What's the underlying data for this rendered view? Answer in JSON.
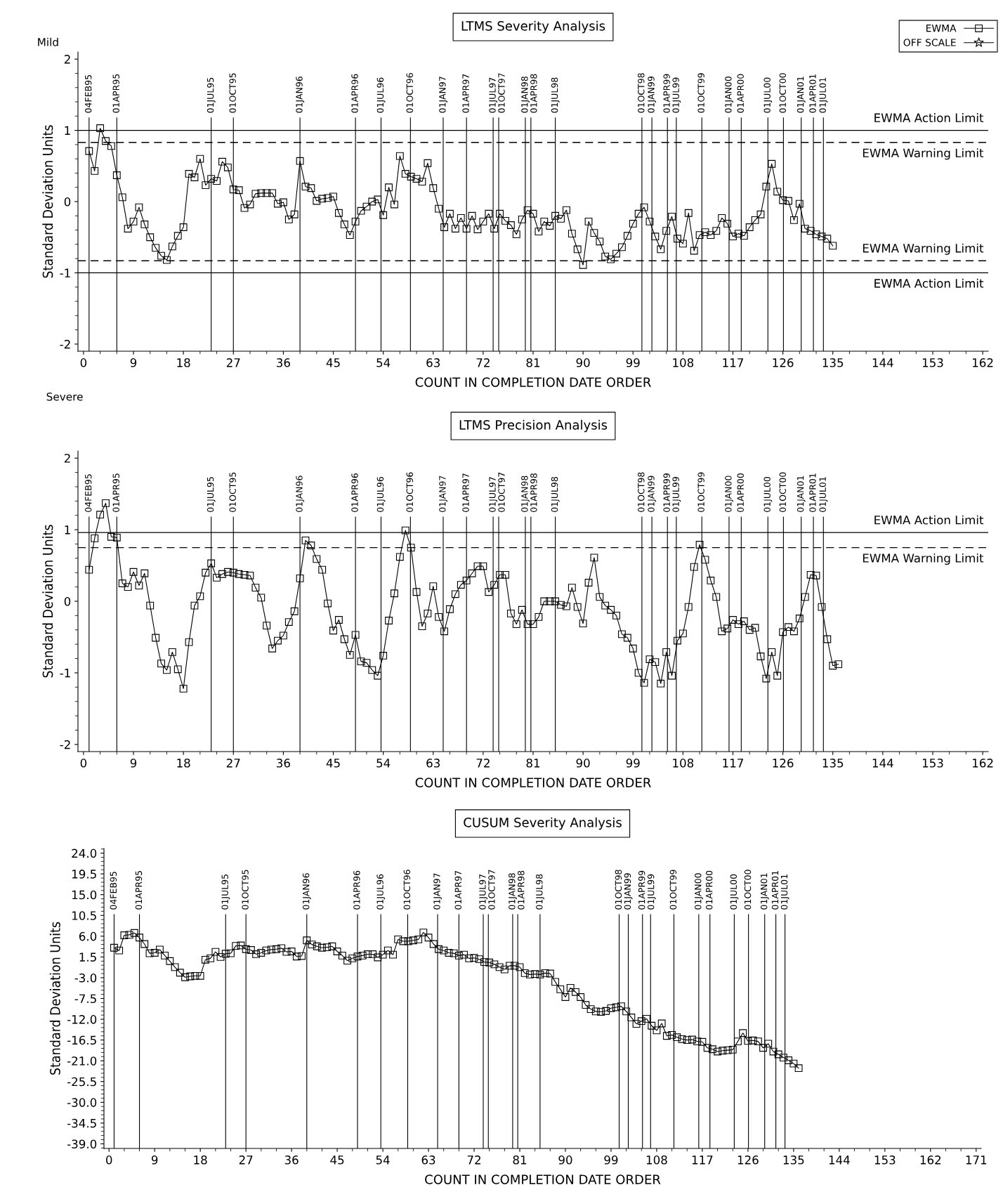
{
  "chart_data": [
    {
      "type": "line",
      "title": "LTMS Severity Analysis",
      "xlabel": "COUNT IN COMPLETION DATE ORDER",
      "ylabel": "Standard Deviation Units",
      "annotations": [
        "Mild",
        "Severe"
      ],
      "marker": "square",
      "legend": "top right",
      "xlim": [
        -1,
        163
      ],
      "xticks": [
        0,
        9,
        18,
        27,
        36,
        45,
        54,
        63,
        72,
        81,
        90,
        99,
        108,
        117,
        126,
        135,
        144,
        153,
        162
      ],
      "ylim": [
        -2.1,
        2.1
      ],
      "yticks": [
        -2,
        -1,
        0,
        1,
        2
      ],
      "series": [
        {
          "name": "EWMA",
          "color": "#000000",
          "x": [
            1,
            2,
            3,
            4,
            5,
            6,
            7,
            8,
            9,
            10,
            11,
            12,
            13,
            14,
            15,
            16,
            17,
            18,
            19,
            20,
            21,
            22,
            23,
            24,
            25,
            26,
            27,
            28,
            29,
            30,
            31,
            32,
            33,
            34,
            35,
            36,
            37,
            38,
            39,
            40,
            41,
            42,
            43,
            44,
            45,
            46,
            47,
            48,
            49,
            50,
            51,
            52,
            53,
            54,
            55,
            56,
            57,
            58,
            59,
            60,
            61,
            62,
            63,
            64,
            65,
            66,
            67,
            68,
            69,
            70,
            71,
            72,
            73,
            74,
            75,
            76,
            77,
            78,
            79,
            80,
            81,
            82,
            83,
            84,
            85,
            86,
            87,
            88,
            89,
            90,
            91,
            92,
            93,
            94,
            95,
            96,
            97,
            98,
            99,
            100,
            101,
            102,
            103,
            104,
            105,
            106,
            107,
            108,
            109,
            110,
            111,
            112,
            113,
            114,
            115,
            116,
            117,
            118,
            119,
            120,
            121,
            122,
            123,
            124,
            125,
            126,
            127,
            128,
            129,
            130,
            131,
            132,
            133,
            134,
            135
          ],
          "values": [
            0.71,
            0.43,
            1.03,
            0.85,
            0.78,
            0.37,
            0.06,
            -0.38,
            -0.28,
            -0.08,
            -0.32,
            -0.5,
            -0.65,
            -0.76,
            -0.82,
            -0.63,
            -0.48,
            -0.36,
            0.39,
            0.34,
            0.6,
            0.23,
            0.32,
            0.29,
            0.56,
            0.48,
            0.17,
            0.16,
            -0.09,
            -0.04,
            0.11,
            0.12,
            0.12,
            0.12,
            -0.03,
            -0.01,
            -0.25,
            -0.18,
            0.57,
            0.21,
            0.19,
            0.01,
            0.04,
            0.05,
            0.07,
            -0.16,
            -0.32,
            -0.47,
            -0.28,
            -0.13,
            -0.07,
            0.0,
            0.03,
            -0.19,
            0.2,
            -0.04,
            0.64,
            0.39,
            0.35,
            0.32,
            0.28,
            0.54,
            0.19,
            -0.1,
            -0.36,
            -0.17,
            -0.38,
            -0.23,
            -0.38,
            -0.2,
            -0.39,
            -0.28,
            -0.17,
            -0.38,
            -0.17,
            -0.27,
            -0.33,
            -0.46,
            -0.25,
            -0.12,
            -0.17,
            -0.42,
            -0.28,
            -0.34,
            -0.2,
            -0.24,
            -0.12,
            -0.45,
            -0.67,
            -0.89,
            -0.28,
            -0.44,
            -0.56,
            -0.77,
            -0.81,
            -0.73,
            -0.64,
            -0.48,
            -0.31,
            -0.17,
            -0.08,
            -0.28,
            -0.49,
            -0.67,
            -0.41,
            -0.21,
            -0.52,
            -0.59,
            -0.16,
            -0.69,
            -0.47,
            -0.43,
            -0.47,
            -0.41,
            -0.23,
            -0.31,
            -0.49,
            -0.45,
            -0.48,
            -0.36,
            -0.26,
            -0.18,
            0.21,
            0.53,
            0.14,
            0.02,
            0.01,
            -0.26,
            -0.03,
            -0.38,
            -0.41,
            -0.46,
            -0.49,
            -0.52,
            -0.62
          ]
        },
        {
          "name": "OFF SCALE",
          "color": "#000000",
          "marker": "star"
        }
      ],
      "ref_lines": [
        {
          "axis": "y",
          "value": 1,
          "label": "EWMA Action Limit",
          "color": "#000000",
          "line_style": "solid"
        },
        {
          "axis": "y",
          "value": 0.83,
          "label": "EWMA Warning Limit",
          "color": "#000000",
          "line_style": "dashed"
        },
        {
          "axis": "y",
          "value": -0.83,
          "label": "EWMA Warning Limit",
          "color": "#000000",
          "line_style": "dashed"
        },
        {
          "axis": "y",
          "value": -1,
          "label": "EWMA Action Limit",
          "color": "#000000",
          "line_style": "solid"
        },
        {
          "axis": "x",
          "value": 1,
          "label": "04FEB95"
        },
        {
          "axis": "x",
          "value": 6,
          "label": "01APR95"
        },
        {
          "axis": "x",
          "value": 23,
          "label": "01JUL95"
        },
        {
          "axis": "x",
          "value": 27,
          "label": "01OCT95"
        },
        {
          "axis": "x",
          "value": 39,
          "label": "01JAN96"
        },
        {
          "axis": "x",
          "value": 49,
          "label": "01APR96"
        },
        {
          "axis": "x",
          "value": 53.6,
          "label": "01JUL96"
        },
        {
          "axis": "x",
          "value": 58.9,
          "label": "01OCT96"
        },
        {
          "axis": "x",
          "value": 64.8,
          "label": "01JAN97"
        },
        {
          "axis": "x",
          "value": 69,
          "label": "01APR97"
        },
        {
          "axis": "x",
          "value": 73.8,
          "label": "01JUL97"
        },
        {
          "axis": "x",
          "value": 74.8,
          "label": "01OCT97"
        },
        {
          "axis": "x",
          "value": 79.6,
          "label": "01JAN98"
        },
        {
          "axis": "x",
          "value": 80.6,
          "label": "01APR98"
        },
        {
          "axis": "x",
          "value": 85,
          "label": "01JUL98"
        },
        {
          "axis": "x",
          "value": 100.6,
          "label": "01OCT98"
        },
        {
          "axis": "x",
          "value": 102.4,
          "label": "01JAN99"
        },
        {
          "axis": "x",
          "value": 105.2,
          "label": "01APR99"
        },
        {
          "axis": "x",
          "value": 106.8,
          "label": "01JUL99"
        },
        {
          "axis": "x",
          "value": 111.4,
          "label": "01OCT99"
        },
        {
          "axis": "x",
          "value": 116.3,
          "label": "01JAN00"
        },
        {
          "axis": "x",
          "value": 118.5,
          "label": "01APR00"
        },
        {
          "axis": "x",
          "value": 123.3,
          "label": "01JUL00"
        },
        {
          "axis": "x",
          "value": 126.1,
          "label": "01OCT00"
        },
        {
          "axis": "x",
          "value": 129.3,
          "label": "01JAN01"
        },
        {
          "axis": "x",
          "value": 131.5,
          "label": "01APR01"
        },
        {
          "axis": "x",
          "value": 133.3,
          "label": "01JUL01"
        }
      ]
    },
    {
      "type": "line",
      "title": "LTMS Precision Analysis",
      "xlabel": "COUNT IN COMPLETION DATE ORDER",
      "ylabel": "Standard Deviation Units",
      "marker": "square",
      "xlim": [
        -1,
        163
      ],
      "xticks": [
        0,
        9,
        18,
        27,
        36,
        45,
        54,
        63,
        72,
        81,
        90,
        99,
        108,
        117,
        126,
        135,
        144,
        153,
        162
      ],
      "ylim": [
        -2.1,
        2.1
      ],
      "yticks": [
        -2,
        -1,
        0,
        1,
        2
      ],
      "series": [
        {
          "color": "#000000",
          "x": [
            1,
            2,
            3,
            4,
            5,
            6,
            7,
            8,
            9,
            10,
            11,
            12,
            13,
            14,
            15,
            16,
            17,
            18,
            19,
            20,
            21,
            22,
            23,
            24,
            25,
            26,
            27,
            28,
            29,
            30,
            31,
            32,
            33,
            34,
            35,
            36,
            37,
            38,
            39,
            40,
            41,
            42,
            43,
            44,
            45,
            46,
            47,
            48,
            49,
            50,
            51,
            52,
            53,
            54,
            55,
            56,
            57,
            58,
            59,
            60,
            61,
            62,
            63,
            64,
            65,
            66,
            67,
            68,
            69,
            70,
            71,
            72,
            73,
            74,
            75,
            76,
            77,
            78,
            79,
            80,
            81,
            82,
            83,
            84,
            85,
            86,
            87,
            88,
            89,
            90,
            91,
            92,
            93,
            94,
            95,
            96,
            97,
            98,
            99,
            100,
            101,
            102,
            103,
            104,
            105,
            106,
            107,
            108,
            109,
            110,
            111,
            112,
            113,
            114,
            115,
            116,
            117,
            118,
            119,
            120,
            121,
            122,
            123,
            124,
            125,
            126,
            127,
            128,
            129,
            130,
            131,
            132,
            133,
            134,
            135,
            136
          ],
          "values": [
            0.44,
            0.88,
            1.21,
            1.37,
            0.9,
            0.89,
            0.25,
            0.2,
            0.41,
            0.22,
            0.39,
            -0.06,
            -0.51,
            -0.87,
            -0.96,
            -0.71,
            -0.95,
            -1.22,
            -0.57,
            -0.06,
            0.07,
            0.4,
            0.53,
            0.33,
            0.38,
            0.41,
            0.4,
            0.38,
            0.37,
            0.36,
            0.19,
            0.05,
            -0.34,
            -0.66,
            -0.55,
            -0.48,
            -0.29,
            -0.14,
            0.32,
            0.85,
            0.78,
            0.59,
            0.44,
            -0.03,
            -0.41,
            -0.26,
            -0.53,
            -0.75,
            -0.47,
            -0.84,
            -0.86,
            -0.96,
            -1.04,
            -0.76,
            -0.27,
            0.11,
            0.62,
            0.99,
            0.75,
            0.13,
            -0.35,
            -0.17,
            0.21,
            -0.22,
            -0.42,
            -0.11,
            0.1,
            0.23,
            0.29,
            0.39,
            0.49,
            0.49,
            0.13,
            0.23,
            0.37,
            0.37,
            -0.17,
            -0.32,
            -0.12,
            -0.32,
            -0.32,
            -0.22,
            0.0,
            0.0,
            0.0,
            -0.05,
            -0.07,
            0.19,
            -0.08,
            -0.31,
            0.26,
            0.61,
            0.06,
            -0.06,
            -0.12,
            -0.2,
            -0.46,
            -0.51,
            -0.66,
            -1.0,
            -1.14,
            -0.81,
            -0.85,
            -1.15,
            -0.71,
            -1.04,
            -0.55,
            -0.45,
            -0.08,
            0.48,
            0.79,
            0.58,
            0.29,
            0.06,
            -0.42,
            -0.38,
            -0.26,
            -0.32,
            -0.28,
            -0.4,
            -0.37,
            -0.77,
            -1.08,
            -0.71,
            -1.04,
            -0.43,
            -0.36,
            -0.42,
            -0.24,
            0.06,
            0.37,
            0.36,
            -0.08,
            -0.53,
            -0.9,
            -0.88
          ]
        }
      ],
      "ref_lines": [
        {
          "axis": "y",
          "value": 0.96,
          "label": "EWMA Action Limit",
          "color": "#000000",
          "line_style": "solid"
        },
        {
          "axis": "y",
          "value": 0.75,
          "label": "EWMA Warning Limit",
          "color": "#000000",
          "line_style": "dashed"
        },
        {
          "axis": "x",
          "value": 1,
          "label": "04FEB95"
        },
        {
          "axis": "x",
          "value": 6,
          "label": "01APR95"
        },
        {
          "axis": "x",
          "value": 23,
          "label": "01JUL95"
        },
        {
          "axis": "x",
          "value": 27,
          "label": "01OCT95"
        },
        {
          "axis": "x",
          "value": 39,
          "label": "01JAN96"
        },
        {
          "axis": "x",
          "value": 49,
          "label": "01APR96"
        },
        {
          "axis": "x",
          "value": 53.6,
          "label": "01JUL96"
        },
        {
          "axis": "x",
          "value": 58.9,
          "label": "01OCT96"
        },
        {
          "axis": "x",
          "value": 64.8,
          "label": "01JAN97"
        },
        {
          "axis": "x",
          "value": 69,
          "label": "01APR97"
        },
        {
          "axis": "x",
          "value": 73.8,
          "label": "01JUL97"
        },
        {
          "axis": "x",
          "value": 74.8,
          "label": "01OCT97"
        },
        {
          "axis": "x",
          "value": 79.6,
          "label": "01JAN98"
        },
        {
          "axis": "x",
          "value": 80.6,
          "label": "01APR98"
        },
        {
          "axis": "x",
          "value": 85,
          "label": "01JUL98"
        },
        {
          "axis": "x",
          "value": 100.6,
          "label": "01OCT98"
        },
        {
          "axis": "x",
          "value": 102.4,
          "label": "01JAN99"
        },
        {
          "axis": "x",
          "value": 105.2,
          "label": "01APR99"
        },
        {
          "axis": "x",
          "value": 106.8,
          "label": "01JUL99"
        },
        {
          "axis": "x",
          "value": 111.4,
          "label": "01OCT99"
        },
        {
          "axis": "x",
          "value": 116.3,
          "label": "01JAN00"
        },
        {
          "axis": "x",
          "value": 118.5,
          "label": "01APR00"
        },
        {
          "axis": "x",
          "value": 123.3,
          "label": "01JUL00"
        },
        {
          "axis": "x",
          "value": 126.1,
          "label": "01OCT00"
        },
        {
          "axis": "x",
          "value": 129.3,
          "label": "01JAN01"
        },
        {
          "axis": "x",
          "value": 131.5,
          "label": "01APR01"
        },
        {
          "axis": "x",
          "value": 133.3,
          "label": "01JUL01"
        }
      ]
    },
    {
      "type": "line",
      "title": "CUSUM Severity Analysis",
      "xlabel": "COUNT IN COMPLETION DATE ORDER",
      "ylabel": "Standard Deviation Units",
      "marker": "square",
      "xlim": [
        -1,
        172
      ],
      "xticks": [
        0,
        9,
        18,
        27,
        36,
        45,
        54,
        63,
        72,
        81,
        90,
        99,
        108,
        117,
        126,
        135,
        144,
        153,
        162,
        171
      ],
      "ylim": [
        -40,
        25
      ],
      "yticks": [
        {
          "value": 24,
          "label": "24.0"
        },
        {
          "value": 19.5,
          "label": "19.5"
        },
        {
          "value": 15,
          "label": "15.0"
        },
        {
          "value": 10.5,
          "label": "10.5"
        },
        {
          "value": 6,
          "label": "6.0"
        },
        {
          "value": 1.5,
          "label": "1.5"
        },
        {
          "value": -3,
          "label": "-3.0"
        },
        {
          "value": -7.5,
          "label": "-7.5"
        },
        {
          "value": -12,
          "label": "-12.0"
        },
        {
          "value": -16.5,
          "label": "-16.5"
        },
        {
          "value": -21,
          "label": "-21.0"
        },
        {
          "value": -25.5,
          "label": "-25.5"
        },
        {
          "value": -30,
          "label": "-30.0"
        },
        {
          "value": -34.5,
          "label": "-34.5"
        },
        {
          "value": -39,
          "label": "-39.0"
        }
      ],
      "series": [
        {
          "color": "#000000",
          "x": [
            1,
            2,
            3,
            4,
            5,
            6,
            7,
            8,
            9,
            10,
            11,
            12,
            13,
            14,
            15,
            16,
            17,
            18,
            19,
            20,
            21,
            22,
            23,
            24,
            25,
            26,
            27,
            28,
            29,
            30,
            31,
            32,
            33,
            34,
            35,
            36,
            37,
            38,
            39,
            40,
            41,
            42,
            43,
            44,
            45,
            46,
            47,
            48,
            49,
            50,
            51,
            52,
            53,
            54,
            55,
            56,
            57,
            58,
            59,
            60,
            61,
            62,
            63,
            64,
            65,
            66,
            67,
            68,
            69,
            70,
            71,
            72,
            73,
            74,
            75,
            76,
            77,
            78,
            79,
            80,
            81,
            82,
            83,
            84,
            85,
            86,
            87,
            88,
            89,
            90,
            91,
            92,
            93,
            94,
            95,
            96,
            97,
            98,
            99,
            100,
            101,
            102,
            103,
            104,
            105,
            106,
            107,
            108,
            109,
            110,
            111,
            112,
            113,
            114,
            115,
            116,
            117,
            118,
            119,
            120,
            121,
            122,
            123,
            124,
            125,
            126,
            127,
            128,
            129,
            130,
            131,
            132,
            133,
            134,
            135,
            136
          ],
          "values": [
            3.5,
            2.9,
            6.2,
            6.3,
            6.7,
            5.7,
            4.3,
            2.3,
            2.4,
            3.1,
            1.8,
            0.6,
            -0.7,
            -1.9,
            -2.9,
            -2.7,
            -2.6,
            -2.6,
            0.9,
            1.2,
            2.6,
            1.5,
            2.2,
            2.3,
            3.9,
            4.0,
            3.2,
            3.0,
            2.1,
            2.4,
            2.9,
            3.1,
            3.2,
            3.4,
            2.6,
            2.7,
            1.6,
            1.7,
            5.1,
            4.2,
            3.8,
            3.5,
            3.6,
            3.8,
            2.7,
            1.8,
            0.7,
            1.2,
            1.6,
            1.8,
            2.1,
            2.1,
            1.4,
            2.0,
            2.9,
            2.0,
            5.3,
            4.9,
            4.9,
            5.1,
            5.3,
            6.8,
            5.7,
            4.3,
            3.2,
            2.9,
            2.4,
            2.3,
            1.8,
            2.0,
            1.2,
            1.3,
            1.0,
            0.4,
            0.3,
            -0.1,
            -0.7,
            -1.2,
            -0.4,
            -0.4,
            -0.7,
            -2.0,
            -2.3,
            -2.2,
            -2.3,
            -2.0,
            -2.1,
            -3.9,
            -5.5,
            -7.2,
            -5.2,
            -6.1,
            -7.2,
            -8.9,
            -9.8,
            -10.3,
            -10.4,
            -10.2,
            -9.6,
            -9.4,
            -9.2,
            -10.3,
            -11.6,
            -13.0,
            -12.4,
            -11.9,
            -13.4,
            -14.4,
            -12.9,
            -15.6,
            -15.4,
            -15.9,
            -16.3,
            -16.5,
            -16.4,
            -16.8,
            -16.9,
            -18.2,
            -18.5,
            -19.0,
            -18.8,
            -18.7,
            -18.6,
            -16.8,
            -15.0,
            -16.7,
            -16.6,
            -16.8,
            -18.2,
            -17.3,
            -19.0,
            -19.6,
            -20.3,
            -20.9,
            -21.6,
            -22.6
          ]
        }
      ],
      "ref_lines": [
        {
          "axis": "x",
          "value": 1,
          "label": "04FEB95"
        },
        {
          "axis": "x",
          "value": 6,
          "label": "01APR95"
        },
        {
          "axis": "x",
          "value": 23,
          "label": "01JUL95"
        },
        {
          "axis": "x",
          "value": 27,
          "label": "01OCT95"
        },
        {
          "axis": "x",
          "value": 39,
          "label": "01JAN96"
        },
        {
          "axis": "x",
          "value": 49,
          "label": "01APR96"
        },
        {
          "axis": "x",
          "value": 53.6,
          "label": "01JUL96"
        },
        {
          "axis": "x",
          "value": 58.9,
          "label": "01OCT96"
        },
        {
          "axis": "x",
          "value": 64.8,
          "label": "01JAN97"
        },
        {
          "axis": "x",
          "value": 69,
          "label": "01APR97"
        },
        {
          "axis": "x",
          "value": 73.8,
          "label": "01JUL97"
        },
        {
          "axis": "x",
          "value": 74.8,
          "label": "01OCT97"
        },
        {
          "axis": "x",
          "value": 79.6,
          "label": "01JAN98"
        },
        {
          "axis": "x",
          "value": 80.6,
          "label": "01APR98"
        },
        {
          "axis": "x",
          "value": 85,
          "label": "01JUL98"
        },
        {
          "axis": "x",
          "value": 100.6,
          "label": "01OCT98"
        },
        {
          "axis": "x",
          "value": 102.4,
          "label": "01JAN99"
        },
        {
          "axis": "x",
          "value": 105.2,
          "label": "01APR99"
        },
        {
          "axis": "x",
          "value": 106.8,
          "label": "01JUL99"
        },
        {
          "axis": "x",
          "value": 111.4,
          "label": "01OCT99"
        },
        {
          "axis": "x",
          "value": 116.3,
          "label": "01JAN00"
        },
        {
          "axis": "x",
          "value": 118.5,
          "label": "01APR00"
        },
        {
          "axis": "x",
          "value": 123.3,
          "label": "01JUL00"
        },
        {
          "axis": "x",
          "value": 126.1,
          "label": "01OCT00"
        },
        {
          "axis": "x",
          "value": 129.3,
          "label": "01JAN01"
        },
        {
          "axis": "x",
          "value": 131.5,
          "label": "01APR01"
        },
        {
          "axis": "x",
          "value": 133.3,
          "label": "01JUL01"
        }
      ]
    }
  ]
}
